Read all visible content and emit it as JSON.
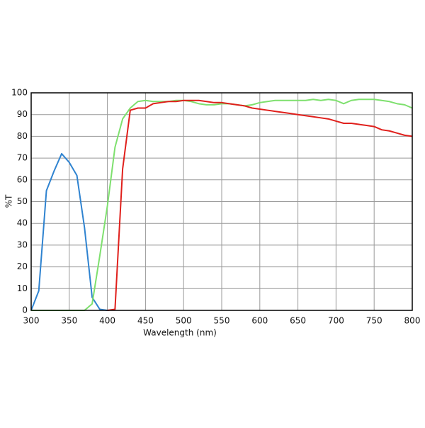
{
  "chart_data": {
    "type": "line",
    "xlabel": "Wavelength (nm)",
    "ylabel": "%T",
    "x": [
      300,
      310,
      320,
      330,
      340,
      350,
      360,
      370,
      380,
      390,
      400,
      410,
      420,
      430,
      440,
      450,
      460,
      470,
      480,
      490,
      500,
      510,
      520,
      530,
      540,
      550,
      560,
      570,
      580,
      590,
      600,
      610,
      620,
      630,
      640,
      650,
      660,
      670,
      680,
      690,
      700,
      710,
      720,
      730,
      740,
      750,
      760,
      770,
      780,
      790,
      800
    ],
    "series": [
      {
        "color": "#2f83d0",
        "values": [
          0,
          9,
          55,
          64,
          72,
          68,
          62,
          38,
          6,
          0.5,
          0,
          null,
          null,
          null,
          null,
          null,
          null,
          null,
          null,
          null,
          null,
          null,
          null,
          null,
          null,
          null,
          null,
          null,
          null,
          null,
          null,
          null,
          null,
          null,
          null,
          null,
          null,
          null,
          null,
          null,
          null,
          null,
          null,
          null,
          null,
          null,
          null,
          null,
          null,
          null,
          null
        ]
      },
      {
        "color": "#7ee06e",
        "values": [
          0,
          0,
          0,
          0,
          0,
          0,
          0,
          0,
          3,
          25,
          48,
          75,
          88,
          93,
          96,
          96.5,
          96,
          96,
          96,
          96.5,
          96.5,
          96,
          95,
          94.5,
          94.5,
          95,
          95,
          94.5,
          94,
          94.5,
          95.5,
          96,
          96.5,
          96.5,
          96.5,
          96.5,
          96.5,
          97,
          96.5,
          97,
          96.5,
          95,
          96.5,
          97,
          97,
          97,
          96.5,
          96,
          95,
          94.5,
          93
        ]
      },
      {
        "color": "#e0201c",
        "values": [
          null,
          null,
          null,
          null,
          null,
          null,
          null,
          null,
          null,
          null,
          0,
          0.5,
          65,
          92,
          93,
          93,
          95,
          95.5,
          96,
          96,
          96.5,
          96.5,
          96.5,
          96,
          95.5,
          95.5,
          95,
          94.5,
          94,
          93,
          92.5,
          92,
          91.5,
          91,
          90.5,
          90,
          89.5,
          89,
          88.5,
          88,
          87,
          86,
          86,
          85.5,
          85,
          84.5,
          83,
          82.5,
          81.5,
          80.5,
          80
        ]
      }
    ],
    "xlim": [
      300,
      800
    ],
    "ylim": [
      0,
      100
    ],
    "xticks": [
      300,
      350,
      400,
      450,
      500,
      550,
      600,
      650,
      700,
      750,
      800
    ],
    "yticks": [
      0,
      10,
      20,
      30,
      40,
      50,
      60,
      70,
      80,
      90,
      100
    ],
    "grid": true
  }
}
